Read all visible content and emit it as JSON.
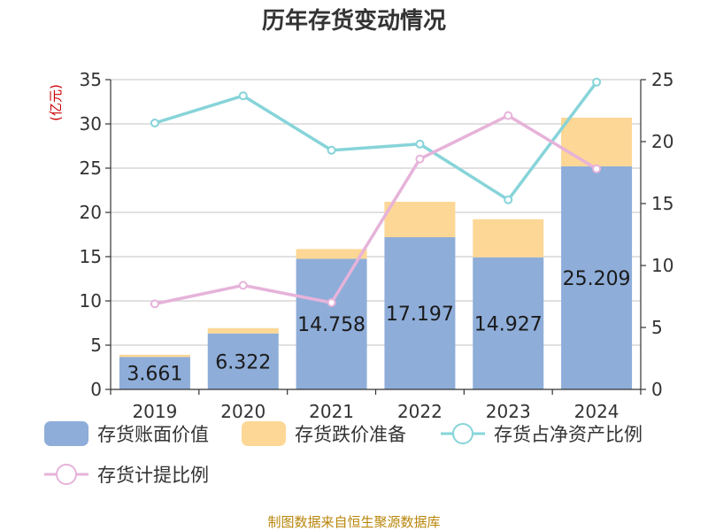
{
  "chart_data": {
    "type": "bar",
    "title": "历年存货变动情况",
    "categories": [
      "2019",
      "2020",
      "2021",
      "2022",
      "2023",
      "2024"
    ],
    "left_axis": {
      "unit_label": "(亿元)",
      "ylim": [
        0,
        35
      ],
      "ticks": [
        "0",
        "5",
        "10",
        "15",
        "20",
        "25",
        "30",
        "35"
      ]
    },
    "right_axis": {
      "unit_label": "%",
      "ylim": [
        0,
        25
      ],
      "ticks": [
        "0",
        "5",
        "10",
        "15",
        "20",
        "25"
      ]
    },
    "bar_series": [
      {
        "name": "存货账面价值",
        "color": "#8eadd9",
        "values": [
          3.661,
          6.322,
          14.758,
          17.197,
          14.927,
          25.209
        ],
        "labels": [
          "3.661",
          "6.322",
          "14.758",
          "17.197",
          "14.927",
          "25.209"
        ]
      },
      {
        "name": "存货跌价准备",
        "color": "#fdd795",
        "values": [
          0.25,
          0.6,
          1.1,
          4.0,
          4.3,
          5.5
        ]
      }
    ],
    "line_series": [
      {
        "name": "存货占净资产比例",
        "color": "#86d4d9",
        "axis": "right",
        "values": [
          21.5,
          23.7,
          19.3,
          19.8,
          15.3,
          24.8
        ]
      },
      {
        "name": "存货计提比例",
        "color": "#e6b3da",
        "axis": "right",
        "values": [
          6.9,
          8.4,
          7.0,
          18.6,
          22.1,
          17.8
        ]
      }
    ],
    "legend_position": "bottom",
    "grid": true,
    "source": "制图数据来自恒生聚源数据库"
  }
}
